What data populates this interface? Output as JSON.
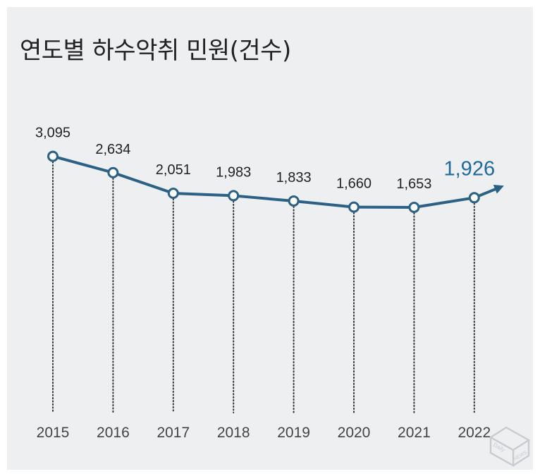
{
  "title": "연도별 하수악취 민원(건수)",
  "chart_data": {
    "type": "line",
    "title": "연도별 하수악취 민원(건수)",
    "x": [
      "2015",
      "2016",
      "2017",
      "2018",
      "2019",
      "2020",
      "2021",
      "2022"
    ],
    "values": [
      3095,
      2634,
      2051,
      1983,
      1833,
      1660,
      1653,
      1926
    ],
    "data_labels": [
      "3,095",
      "2,634",
      "2,051",
      "1,983",
      "1,833",
      "1,660",
      "1,653",
      "1,926"
    ],
    "highlight_index": 7,
    "line_color": "#2b6185",
    "highlight_color": "#1f6a9a",
    "label_color": "#222222",
    "xlabel": "",
    "ylabel": "",
    "grid": false,
    "guide_lines": "dotted-vertical"
  },
  "watermark": {
    "top": "Daily",
    "bottom": "NEWS"
  }
}
